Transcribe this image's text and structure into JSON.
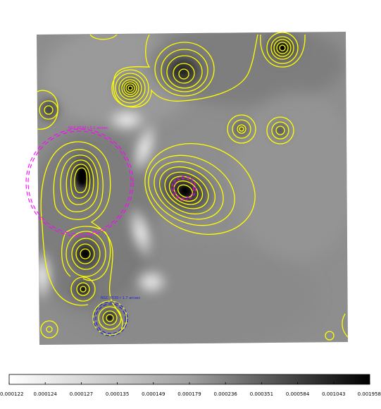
{
  "image": {
    "description_hidden": "",
    "contour_color": "#ffff00",
    "region_colors": {
      "magenta": "#ff00ff",
      "blue": "#2020dd"
    }
  },
  "annotations": {
    "left_region_label": "NGC 6530 r 5.1 arcsec",
    "center_region_label": "",
    "bottom_region_label": "NGC 6530 r 1.7 arcsec"
  },
  "colorbar": {
    "ticks": [
      "0.000122",
      "0.000124",
      "0.000127",
      "0.000135",
      "0.000149",
      "0.000179",
      "0.000236",
      "0.000351",
      "0.000584",
      "0.001043",
      "0.001958"
    ]
  }
}
